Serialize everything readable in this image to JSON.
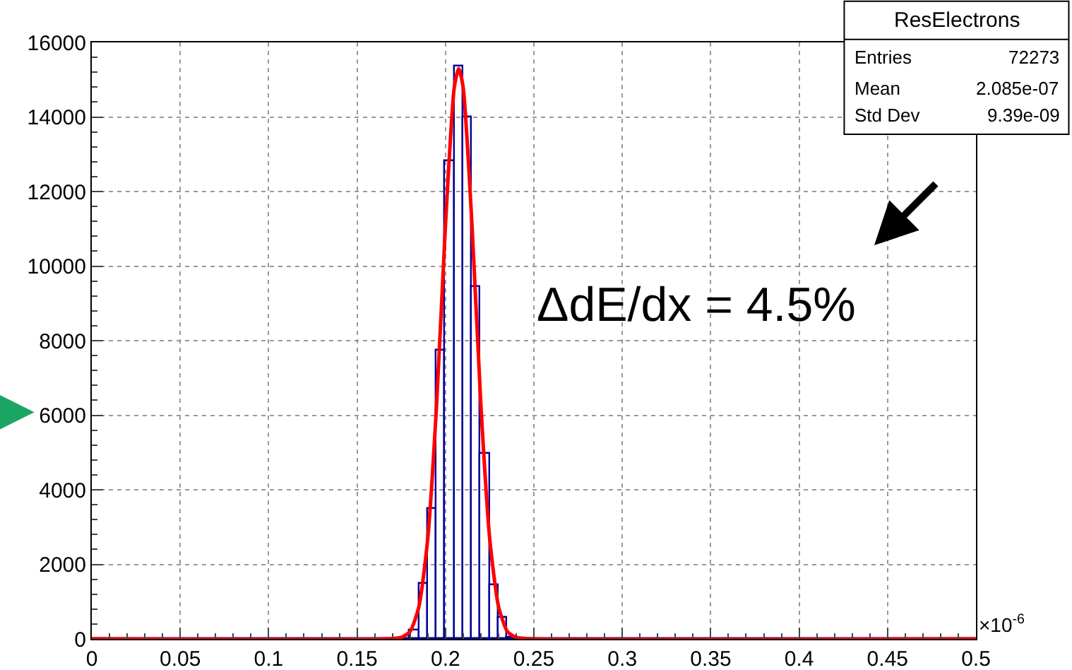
{
  "chart_data": {
    "type": "histogram",
    "title": "ResElectrons",
    "annotations": [
      "Entries",
      "72273",
      "Mean",
      "2.085e-07",
      "Std Dev",
      "9.39e-09",
      "ΔdE/dx = 4.5%",
      "×10$^{-6}$"
    ],
    "bins": [
      0,
      0.005,
      0.01,
      0.015,
      0.02,
      0.025,
      0.03,
      0.035,
      0.04,
      0.045,
      0.05,
      0.055,
      0.06,
      0.065,
      0.07,
      0.075,
      0.08,
      0.085,
      0.09,
      0.095,
      0.1,
      0.105,
      0.11,
      0.115,
      0.12,
      0.125,
      0.13,
      0.135,
      0.14,
      0.145,
      0.15,
      0.155,
      0.16,
      0.165,
      0.17,
      0.175,
      0.18,
      0.185,
      0.19,
      0.195,
      0.2,
      0.205,
      0.21,
      0.215,
      0.22,
      0.225,
      0.23,
      0.235,
      0.24,
      0.245,
      0.25,
      0.255,
      0.26,
      0.265,
      0.27,
      0.275,
      0.28,
      0.285,
      0.29,
      0.295,
      0.3,
      0.305,
      0.31,
      0.315,
      0.32,
      0.325,
      0.33,
      0.335,
      0.34,
      0.345,
      0.35,
      0.355,
      0.36,
      0.365,
      0.37,
      0.375,
      0.38,
      0.385,
      0.39,
      0.395,
      0.4,
      0.405,
      0.41,
      0.415,
      0.42,
      0.425,
      0.43,
      0.435,
      0.44,
      0.445,
      0.45,
      0.455,
      0.46,
      0.465,
      0.47,
      0.475,
      0.48,
      0.485,
      0.49,
      0.495,
      0.5
    ],
    "values": [
      0,
      0,
      0,
      0,
      0,
      0,
      0,
      0,
      0,
      0,
      0,
      0,
      0,
      0,
      0,
      0,
      0,
      0,
      0,
      0,
      0,
      0,
      0,
      0,
      0,
      0,
      0,
      0,
      0,
      0,
      0,
      0,
      0,
      0,
      0,
      0,
      240,
      1480,
      3500,
      7750,
      12800,
      15350,
      14000,
      9450,
      4950,
      1450,
      570,
      50,
      0,
      0,
      0,
      0,
      0,
      0,
      0,
      0,
      0,
      0,
      0,
      0,
      0,
      0,
      0,
      0,
      0,
      0,
      0,
      0,
      0,
      0,
      0,
      0,
      0,
      0,
      0,
      0,
      0,
      0,
      0,
      0,
      0,
      0,
      0,
      0,
      0,
      0,
      0,
      0,
      0,
      0,
      0,
      0,
      0,
      0,
      0,
      0,
      0,
      0,
      0,
      0
    ],
    "color": "#000099",
    "series": [
      {
        "type": "line",
        "color": "#ff0000",
        "x": [
          0,
          0.165,
          0.175,
          0.18,
          0.185,
          0.19,
          0.195,
          0.2,
          0.205,
          0.2075,
          0.21,
          0.215,
          0.22,
          0.225,
          0.23,
          0.235,
          0.24,
          0.25,
          0.5
        ],
        "values": [
          0,
          0,
          40,
          200,
          870,
          2700,
          6300,
          11100,
          14800,
          15300,
          14800,
          11100,
          6300,
          2700,
          870,
          200,
          40,
          0,
          0
        ]
      }
    ],
    "xlim": [
      0,
      0.5
    ],
    "xticks": [
      0,
      0.05,
      0.1,
      0.15,
      0.2,
      0.25,
      0.3,
      0.35,
      0.4,
      0.45,
      0.5
    ],
    "ylim": [
      0,
      16000
    ],
    "yticks": [
      0,
      2000,
      4000,
      6000,
      8000,
      10000,
      12000,
      14000,
      16000
    ],
    "grid": true
  }
}
